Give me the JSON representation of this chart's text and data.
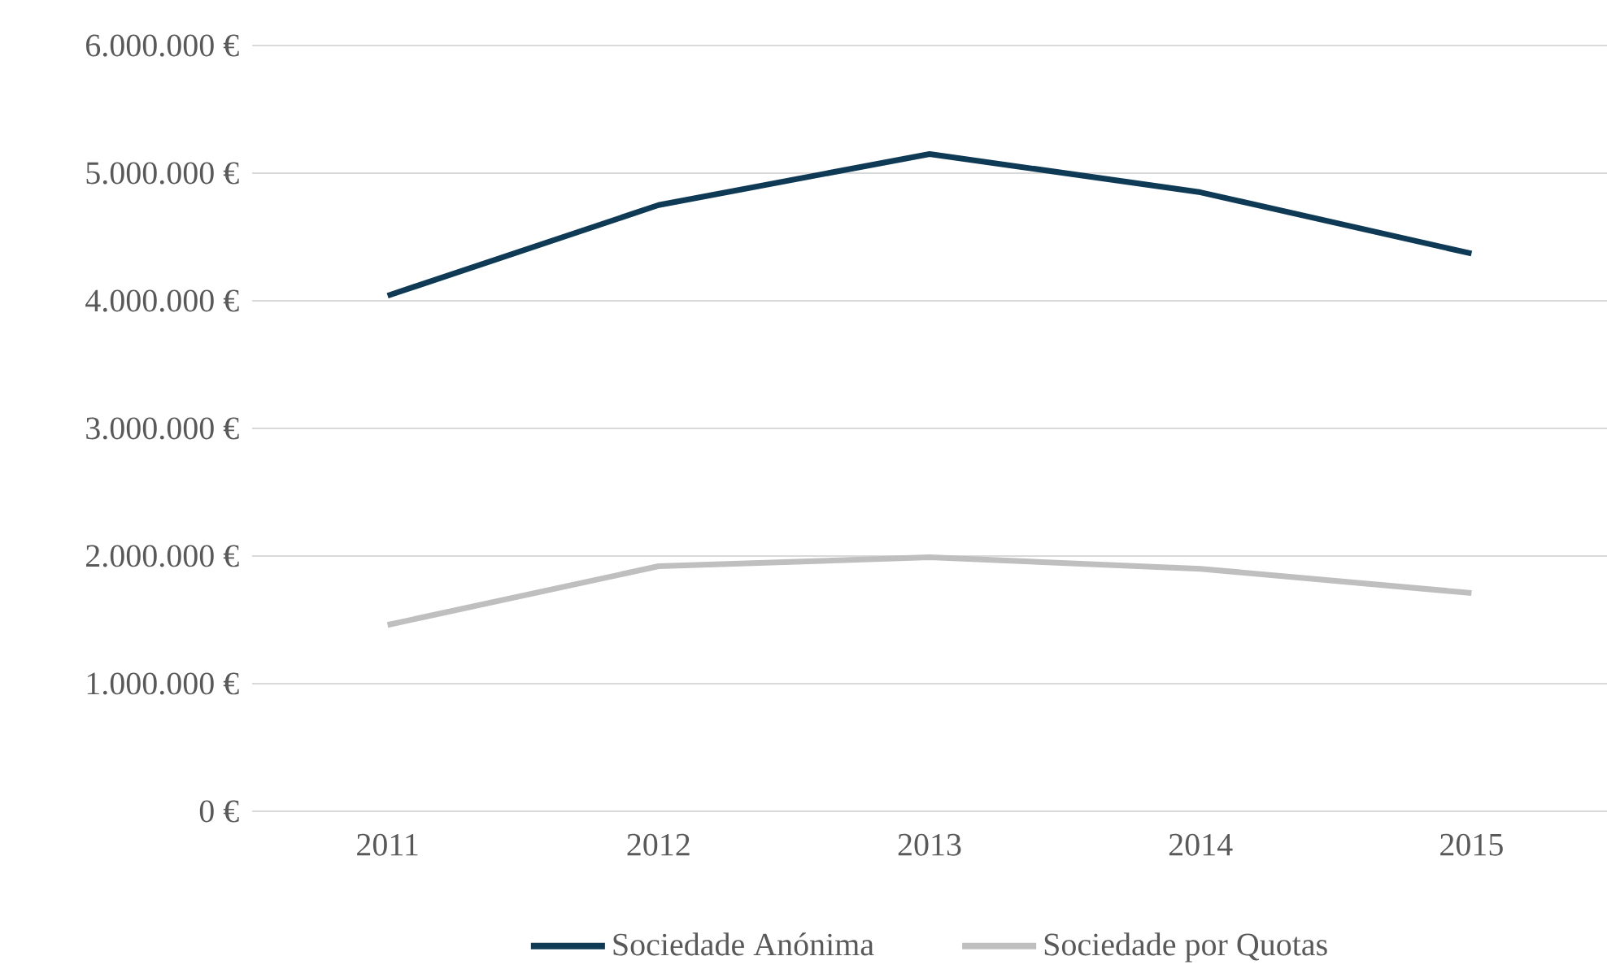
{
  "chart_data": {
    "type": "line",
    "categories": [
      "2011",
      "2012",
      "2013",
      "2014",
      "2015"
    ],
    "series": [
      {
        "name": "Sociedade Anónima",
        "color": "#0e3a56",
        "values": [
          4040000,
          4750000,
          5150000,
          4850000,
          4370000
        ]
      },
      {
        "name": "Sociedade por Quotas",
        "color": "#bfbfbf",
        "values": [
          1460000,
          1920000,
          1990000,
          1900000,
          1710000
        ]
      }
    ],
    "ylim": [
      0,
      6000000
    ],
    "yticks": [
      {
        "value": 0,
        "label": "0 €"
      },
      {
        "value": 1000000,
        "label": "1.000.000 €"
      },
      {
        "value": 2000000,
        "label": "2.000.000 €"
      },
      {
        "value": 3000000,
        "label": "3.000.000 €"
      },
      {
        "value": 4000000,
        "label": "4.000.000 €"
      },
      {
        "value": 5000000,
        "label": "5.000.000 €"
      },
      {
        "value": 6000000,
        "label": "6.000.000 €"
      }
    ],
    "grid": "y",
    "legend": "bottom",
    "marker": "none",
    "line_style": "solid"
  }
}
